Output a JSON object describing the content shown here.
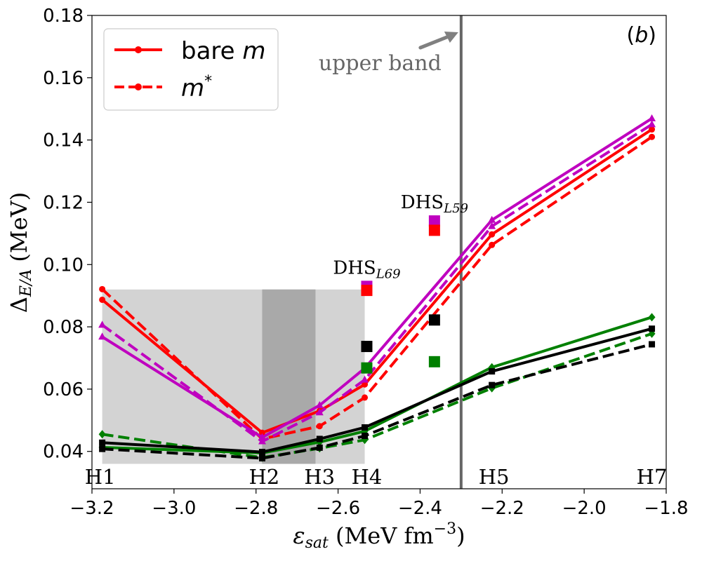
{
  "chart_data": {
    "type": "line",
    "panel_label": {
      "prefix": "(",
      "letter": "b",
      "suffix": ")"
    },
    "xlabel": {
      "symbol": "ε",
      "sub": "sat",
      "unit_pre": " (MeV fm",
      "unit_sup": "−3",
      "unit_post": ")"
    },
    "ylabel": {
      "symbol": "Δ",
      "sub": "E/A",
      "unit": " (MeV)"
    },
    "xlim": [
      -3.2,
      -1.8
    ],
    "ylim": [
      0.028,
      0.18
    ],
    "x_ticks": [
      -3.2,
      -3.0,
      -2.8,
      -2.6,
      -2.4,
      -2.2,
      -2.0,
      -1.8
    ],
    "x_tick_labels": [
      "−3.2",
      "−3.0",
      "−2.8",
      "−2.6",
      "−2.4",
      "−2.2",
      "−2.0",
      "−1.8"
    ],
    "y_ticks": [
      0.04,
      0.06,
      0.08,
      0.1,
      0.12,
      0.14,
      0.16,
      0.18
    ],
    "y_tick_labels": [
      "0.04",
      "0.06",
      "0.08",
      "0.10",
      "0.12",
      "0.14",
      "0.16",
      "0.18"
    ],
    "hamiltonians": [
      {
        "label": "H1",
        "x": -3.18
      },
      {
        "label": "H2",
        "x": -2.78
      },
      {
        "label": "H3",
        "x": -2.645
      },
      {
        "label": "H4",
        "x": -2.53
      },
      {
        "label": "H5",
        "x": -2.22
      },
      {
        "label": "H7",
        "x": -1.835
      }
    ],
    "shaded_regions": [
      {
        "x": [
          -3.175,
          -2.535
        ],
        "y": [
          0.036,
          0.092
        ],
        "color": "#d3d3d3"
      },
      {
        "x": [
          -2.785,
          -2.655
        ],
        "y": [
          0.036,
          0.092
        ],
        "color": "#a9a9a9"
      }
    ],
    "upper_band": {
      "x": -2.3,
      "label": "upper band",
      "color": "#666666"
    },
    "legend": {
      "position": "top-left",
      "entries": [
        {
          "label_text": "bare ",
          "label_italic": "m",
          "label_sup": "",
          "style": "solid",
          "color": "#ff0000"
        },
        {
          "label_text": "",
          "label_italic": "m",
          "label_sup": "*",
          "style": "dashed",
          "color": "#ff0000"
        }
      ]
    },
    "series": [
      {
        "color": "#ff0000",
        "style": "solid",
        "marker": "circle",
        "x": [
          -3.175,
          -2.785,
          -2.645,
          -2.535,
          -2.225,
          -1.835
        ],
        "y": [
          0.0887,
          0.046,
          0.053,
          0.0615,
          0.1097,
          0.1434
        ]
      },
      {
        "color": "#ff0000",
        "style": "dashed",
        "marker": "circle",
        "x": [
          -3.175,
          -2.785,
          -2.645,
          -2.535,
          -2.225,
          -1.835
        ],
        "y": [
          0.0921,
          0.044,
          0.0481,
          0.0573,
          0.1063,
          0.141
        ]
      },
      {
        "color": "#bf00bf",
        "style": "solid",
        "marker": "triangle",
        "x": [
          -3.175,
          -2.785,
          -2.645,
          -2.535,
          -2.225,
          -1.835
        ],
        "y": [
          0.0768,
          0.0445,
          0.0548,
          0.0667,
          0.1143,
          0.1469
        ]
      },
      {
        "color": "#bf00bf",
        "style": "dashed",
        "marker": "triangle",
        "x": [
          -3.175,
          -2.785,
          -2.645,
          -2.535,
          -2.225,
          -1.835
        ],
        "y": [
          0.0806,
          0.0432,
          0.0525,
          0.063,
          0.1123,
          0.145
        ]
      },
      {
        "color": "#008000",
        "style": "solid",
        "marker": "diamond",
        "x": [
          -3.175,
          -2.785,
          -2.645,
          -2.535,
          -2.225,
          -1.835
        ],
        "y": [
          0.0413,
          0.0395,
          0.043,
          0.0465,
          0.067,
          0.0831
        ]
      },
      {
        "color": "#008000",
        "style": "dashed",
        "marker": "diamond",
        "x": [
          -3.175,
          -2.785,
          -2.645,
          -2.535,
          -2.225,
          -1.835
        ],
        "y": [
          0.0455,
          0.038,
          0.041,
          0.0437,
          0.0603,
          0.0778
        ]
      },
      {
        "color": "#000000",
        "style": "solid",
        "marker": "square",
        "x": [
          -3.175,
          -2.785,
          -2.645,
          -2.535,
          -2.225,
          -1.835
        ],
        "y": [
          0.0428,
          0.0398,
          0.044,
          0.0477,
          0.0657,
          0.0794
        ]
      },
      {
        "color": "#000000",
        "style": "dashed",
        "marker": "square",
        "x": [
          -3.175,
          -2.785,
          -2.645,
          -2.535,
          -2.225,
          -1.835
        ],
        "y": [
          0.0408,
          0.0378,
          0.0412,
          0.045,
          0.0613,
          0.0744
        ]
      }
    ],
    "dhs_points": [
      {
        "name": "DHS",
        "sub": "L69",
        "x": -2.53,
        "values": [
          {
            "color": "#bf00bf",
            "y": 0.093
          },
          {
            "color": "#ff0000",
            "y": 0.0917
          },
          {
            "color": "#000000",
            "y": 0.0737
          },
          {
            "color": "#008000",
            "y": 0.0668
          }
        ]
      },
      {
        "name": "DHS",
        "sub": "L59",
        "x": -2.365,
        "values": [
          {
            "color": "#bf00bf",
            "y": 0.114
          },
          {
            "color": "#ff0000",
            "y": 0.111
          },
          {
            "color": "#000000",
            "y": 0.0822
          },
          {
            "color": "#008000",
            "y": 0.0688
          }
        ]
      }
    ]
  }
}
